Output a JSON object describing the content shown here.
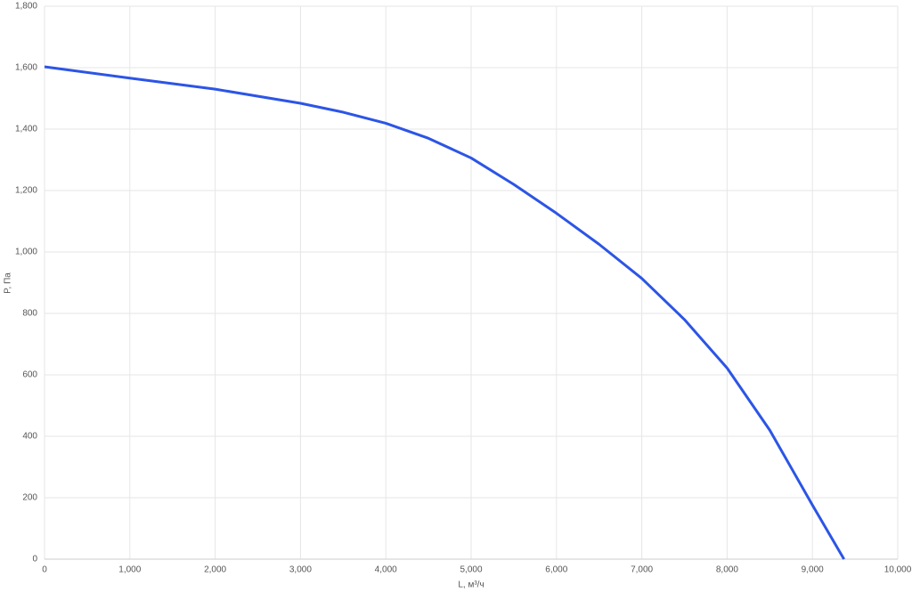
{
  "chart_data": {
    "type": "line",
    "x_label": "L, м³/ч",
    "y_label": "P, Па",
    "x": [
      0,
      1000,
      2000,
      3000,
      3500,
      4000,
      4500,
      5000,
      5500,
      6000,
      6500,
      7000,
      7500,
      8000,
      8500,
      9000,
      9370
    ],
    "series": [
      {
        "color": "#2c55e6",
        "values": [
          1603,
          1566,
          1530,
          1484,
          1455,
          1419,
          1370,
          1306,
          1220,
          1126,
          1025,
          914,
          780,
          622,
          420,
          176,
          0
        ]
      }
    ],
    "xlim": [
      0,
      10000
    ],
    "xticks": [
      0,
      {
        "value": 1000,
        "label": "1,000"
      },
      {
        "value": 2000,
        "label": "2,000"
      },
      {
        "value": 3000,
        "label": "3,000"
      },
      {
        "value": 4000,
        "label": "4,000"
      },
      {
        "value": 5000,
        "label": "5,000"
      },
      {
        "value": 6000,
        "label": "6,000"
      },
      {
        "value": 7000,
        "label": "7,000"
      },
      {
        "value": 8000,
        "label": "8,000"
      },
      {
        "value": 9000,
        "label": "9,000"
      },
      {
        "value": 10000,
        "label": "10,000"
      }
    ],
    "ylim": [
      0,
      1800
    ],
    "yticks": [
      0,
      200,
      400,
      600,
      800,
      {
        "value": 1000,
        "label": "1,000"
      },
      {
        "value": 1200,
        "label": "1,200"
      },
      {
        "value": 1400,
        "label": "1,400"
      },
      {
        "value": 1600,
        "label": "1,600"
      },
      {
        "value": 1800,
        "label": "1,800"
      }
    ],
    "grid": true
  }
}
